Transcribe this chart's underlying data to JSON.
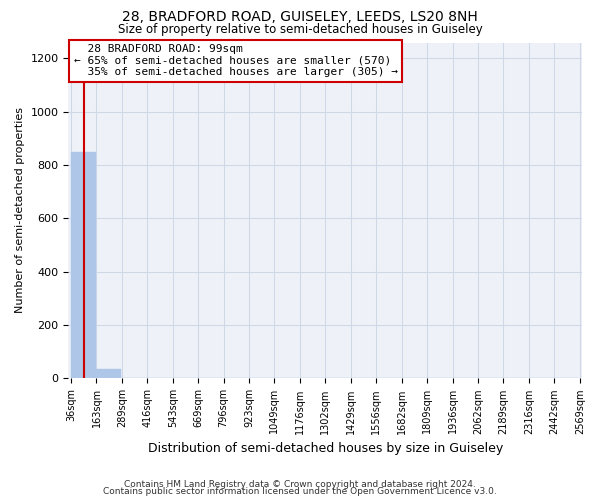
{
  "title": "28, BRADFORD ROAD, GUISELEY, LEEDS, LS20 8NH",
  "subtitle": "Size of property relative to semi-detached houses in Guiseley",
  "xlabel": "Distribution of semi-detached houses by size in Guiseley",
  "ylabel": "Number of semi-detached properties",
  "footnote1": "Contains HM Land Registry data © Crown copyright and database right 2024.",
  "footnote2": "Contains public sector information licensed under the Open Government Licence v3.0.",
  "bar_edges": [
    36,
    163,
    289,
    416,
    543,
    669,
    796,
    923,
    1049,
    1176,
    1302,
    1429,
    1556,
    1682,
    1809,
    1936,
    2062,
    2189,
    2316,
    2442,
    2569
  ],
  "bar_heights": [
    850,
    35,
    0,
    0,
    0,
    0,
    0,
    0,
    0,
    0,
    0,
    0,
    0,
    0,
    0,
    0,
    0,
    0,
    0,
    0
  ],
  "bar_color": "#aec6e8",
  "bar_edge_color": "#aec6e8",
  "grid_color": "#d0d8e8",
  "background_color": "#eef2f8",
  "property_size": 99,
  "property_label": "28 BRADFORD ROAD: 99sqm",
  "pct_smaller": 65,
  "pct_smaller_count": 570,
  "pct_larger": 35,
  "pct_larger_count": 305,
  "vline_color": "#cc0000",
  "annotation_box_color": "#cc0000",
  "ylim": [
    0,
    1260
  ],
  "yticks": [
    0,
    200,
    400,
    600,
    800,
    1000,
    1200
  ]
}
